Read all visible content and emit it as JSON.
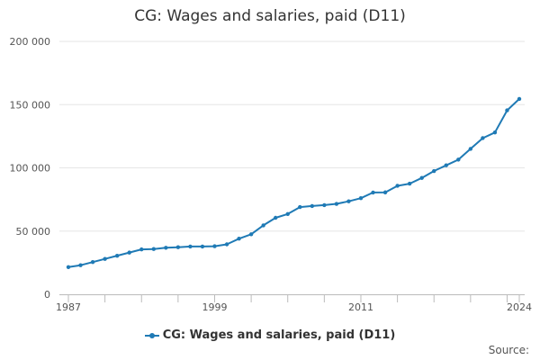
{
  "source_label": "Source:",
  "chart_data": {
    "type": "line",
    "title": "CG: Wages and salaries, paid (D11)",
    "xlabel": "",
    "ylabel": "",
    "x_tick_labels": [
      "1987",
      "1999",
      "2011",
      "2024"
    ],
    "y_tick_labels": [
      "0",
      "50 000",
      "100 000",
      "150 000",
      "200 000"
    ],
    "ylim": [
      0,
      200000
    ],
    "xlim": [
      1987,
      2024
    ],
    "grid": "horizontal",
    "legend_position": "bottom",
    "series": [
      {
        "name": "CG: Wages and salaries, paid (D11)",
        "color": "#1f7ab5",
        "x": [
          1987,
          1988,
          1989,
          1990,
          1991,
          1992,
          1993,
          1994,
          1995,
          1996,
          1997,
          1998,
          1999,
          2000,
          2001,
          2002,
          2003,
          2004,
          2005,
          2006,
          2007,
          2008,
          2009,
          2010,
          2011,
          2012,
          2013,
          2014,
          2015,
          2016,
          2017,
          2018,
          2019,
          2020,
          2021,
          2022,
          2023,
          2024
        ],
        "values": [
          21500,
          23000,
          25500,
          28000,
          30500,
          33000,
          35500,
          35800,
          36800,
          37200,
          37800,
          37800,
          38000,
          39500,
          44000,
          47500,
          54500,
          60500,
          63500,
          69000,
          69800,
          70500,
          71500,
          73500,
          76000,
          80500,
          80600,
          85800,
          87500,
          92000,
          97500,
          102000,
          106500,
          115000,
          123500,
          128000,
          145500,
          154500
        ]
      }
    ]
  }
}
